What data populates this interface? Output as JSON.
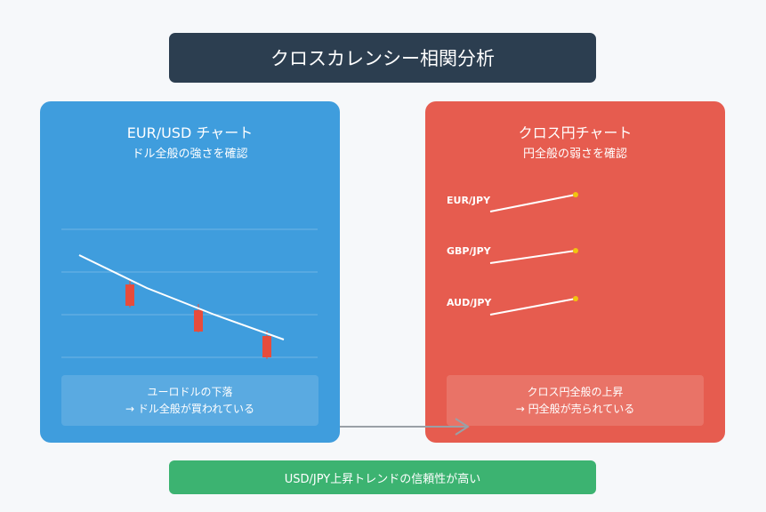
{
  "title": "クロスカレンシー相関分析",
  "left_panel": {
    "title": "EUR/USD チャート",
    "subtitle": "ドル全般の強さを確認",
    "note_line1": "ユーロドルの下落",
    "note_line2": "→ ドル全般が買われている",
    "color": "#3f9ddd"
  },
  "right_panel": {
    "title": "クロス円チャート",
    "subtitle": "円全般の弱さを確認",
    "pairs": [
      "EUR/JPY",
      "GBP/JPY",
      "AUD/JPY"
    ],
    "note_line1": "クロス円全般の上昇",
    "note_line2": "→ 円全般が売られている",
    "color": "#e65c4f"
  },
  "bottom_banner": "USD/JPY上昇トレンドの信頼性が高い",
  "colors": {
    "title_bg": "#2c3e50",
    "banner_bg": "#3cb371",
    "candle": "#e74c3c",
    "dot": "#f1c40f",
    "arrow": "#9aa0a6"
  }
}
